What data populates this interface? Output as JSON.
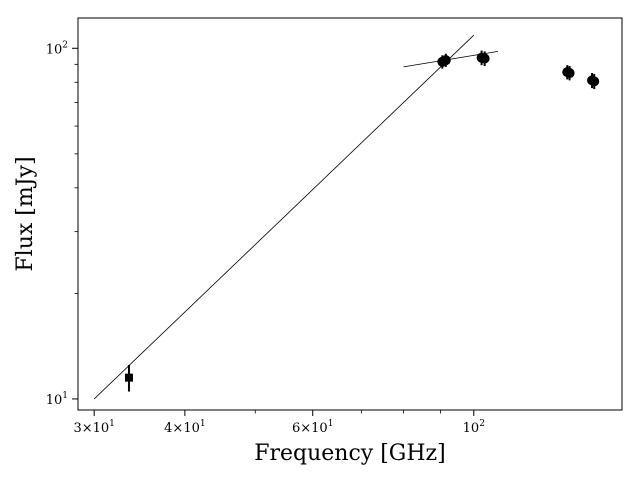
{
  "chart_data": {
    "type": "scatter",
    "xlabel": "Frequency [GHz]",
    "ylabel": "Flux [mJy]",
    "xscale": "log",
    "yscale": "log",
    "xlim": [
      28.5,
      160
    ],
    "ylim": [
      9.3,
      122
    ],
    "grid": false,
    "x_major_ticks": [
      {
        "value": 30,
        "base": "3",
        "exp": "1"
      },
      {
        "value": 40,
        "base": "4",
        "exp": "1"
      },
      {
        "value": 60,
        "base": "6",
        "exp": "1"
      },
      {
        "value": 100,
        "base": "10",
        "exp": "2"
      }
    ],
    "x_minor_ticks": [
      50,
      70,
      80,
      90
    ],
    "y_major_ticks": [
      {
        "value": 10,
        "base": "10",
        "exp": "1"
      },
      {
        "value": 100,
        "base": "10",
        "exp": "2"
      }
    ],
    "y_minor_ticks": [
      20,
      30,
      40,
      50,
      60,
      70,
      80,
      90
    ],
    "series": [
      {
        "marker": "square",
        "color": "#000000",
        "points": [
          {
            "x": 33.5,
            "y": 11.5,
            "yerr": 1.0
          }
        ]
      },
      {
        "marker": "circle",
        "color": "#000000",
        "points": [
          {
            "x": 90.5,
            "y": 91.5,
            "yerr": 4.0
          },
          {
            "x": 91.5,
            "y": 92.5,
            "yerr": 4.0
          },
          {
            "x": 102.5,
            "y": 94.0,
            "yerr": 4.5
          },
          {
            "x": 103.5,
            "y": 93.5,
            "yerr": 4.5
          },
          {
            "x": 134.5,
            "y": 85.5,
            "yerr": 4.0
          },
          {
            "x": 135.5,
            "y": 85.0,
            "yerr": 4.0
          },
          {
            "x": 145.5,
            "y": 81.0,
            "yerr": 4.0
          },
          {
            "x": 146.5,
            "y": 80.5,
            "yerr": 4.0
          }
        ]
      }
    ],
    "lines": [
      {
        "x": [
          30,
          100
        ],
        "y": [
          10,
          109
        ],
        "color": "#000000"
      },
      {
        "x": [
          80,
          108
        ],
        "y": [
          88.5,
          98
        ],
        "color": "#000000"
      }
    ]
  }
}
